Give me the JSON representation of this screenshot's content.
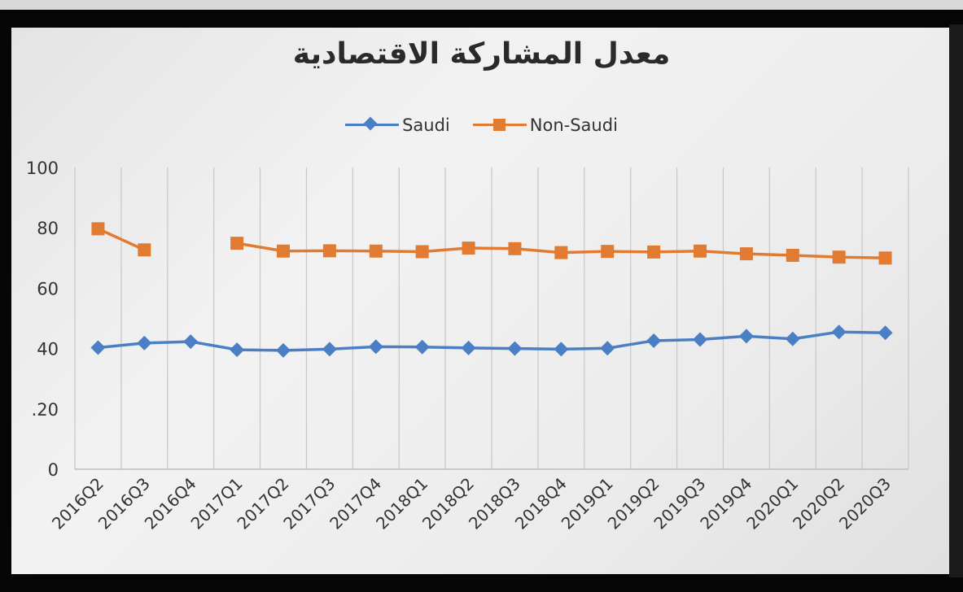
{
  "chart_data": {
    "type": "line",
    "title": "معدل المشاركة الاقتصادية",
    "categories": [
      "2016Q2",
      "2016Q3",
      "2016Q4",
      "2017Q1",
      "2017Q2",
      "2017Q3",
      "2017Q4",
      "2018Q1",
      "2018Q2",
      "2018Q3",
      "2018Q4",
      "2019Q1",
      "2019Q2",
      "2019Q3",
      "2019Q4",
      "2020Q1",
      "2020Q2",
      "2020Q3"
    ],
    "series": [
      {
        "name": "Saudi",
        "color": "#4a7fc6",
        "marker": "diamond",
        "values": [
          40.3,
          41.8,
          42.3,
          39.6,
          39.4,
          39.8,
          40.6,
          40.5,
          40.2,
          40.0,
          39.8,
          40.1,
          42.6,
          43.0,
          44.1,
          43.2,
          45.5,
          45.2
        ]
      },
      {
        "name": "Non-Saudi",
        "color": "#e07b31",
        "marker": "square",
        "values": [
          79.7,
          72.7,
          null,
          74.9,
          72.3,
          72.4,
          72.3,
          72.1,
          73.3,
          73.1,
          71.8,
          72.2,
          72.0,
          72.3,
          71.4,
          70.9,
          70.3,
          70.0
        ]
      }
    ],
    "y_tick_labels": [
      "0",
      ".20",
      "40",
      "60",
      "80",
      "100"
    ],
    "ylim": [
      0,
      100
    ],
    "xlabel": "",
    "ylabel": "",
    "grid": "vertical",
    "legend_position": "top"
  }
}
